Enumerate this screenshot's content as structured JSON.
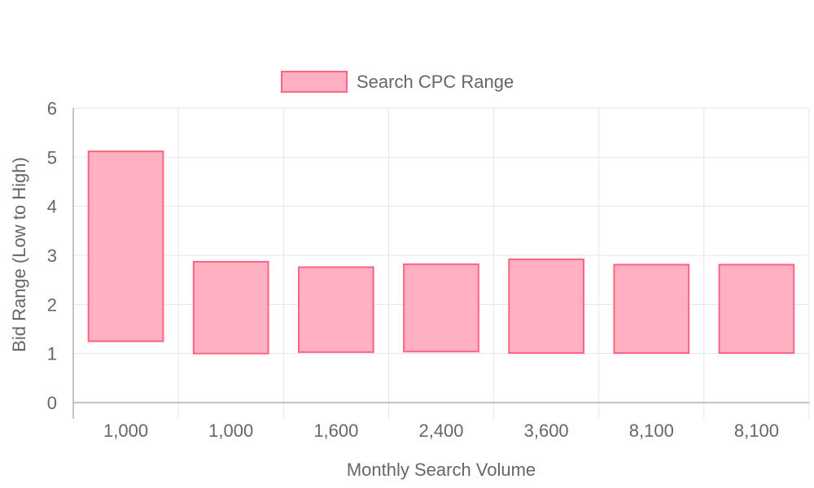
{
  "chart_data": {
    "type": "bar",
    "subtype": "floating-range",
    "legend": {
      "label": "Search CPC Range",
      "position": "top-center"
    },
    "xlabel": "Monthly Search Volume",
    "ylabel": "Bid Range (Low to High)",
    "categories": [
      "1,000",
      "1,000",
      "1,600",
      "2,400",
      "3,600",
      "8,100",
      "8,100"
    ],
    "series": [
      {
        "name": "Search CPC Range",
        "ranges": [
          [
            1.25,
            5.12
          ],
          [
            1.0,
            2.87
          ],
          [
            1.03,
            2.76
          ],
          [
            1.04,
            2.82
          ],
          [
            1.01,
            2.92
          ],
          [
            1.01,
            2.81
          ],
          [
            1.01,
            2.81
          ]
        ]
      }
    ],
    "ylim": [
      0,
      6
    ],
    "yticks": [
      "0",
      "1",
      "2",
      "3",
      "4",
      "5",
      "6"
    ],
    "grid": true,
    "colors": {
      "bar_fill": "#ffb1c1",
      "bar_stroke": "#ff6384",
      "grid": "#e5e5e5",
      "axis": "#b0b0b0",
      "text": "#666666"
    }
  }
}
